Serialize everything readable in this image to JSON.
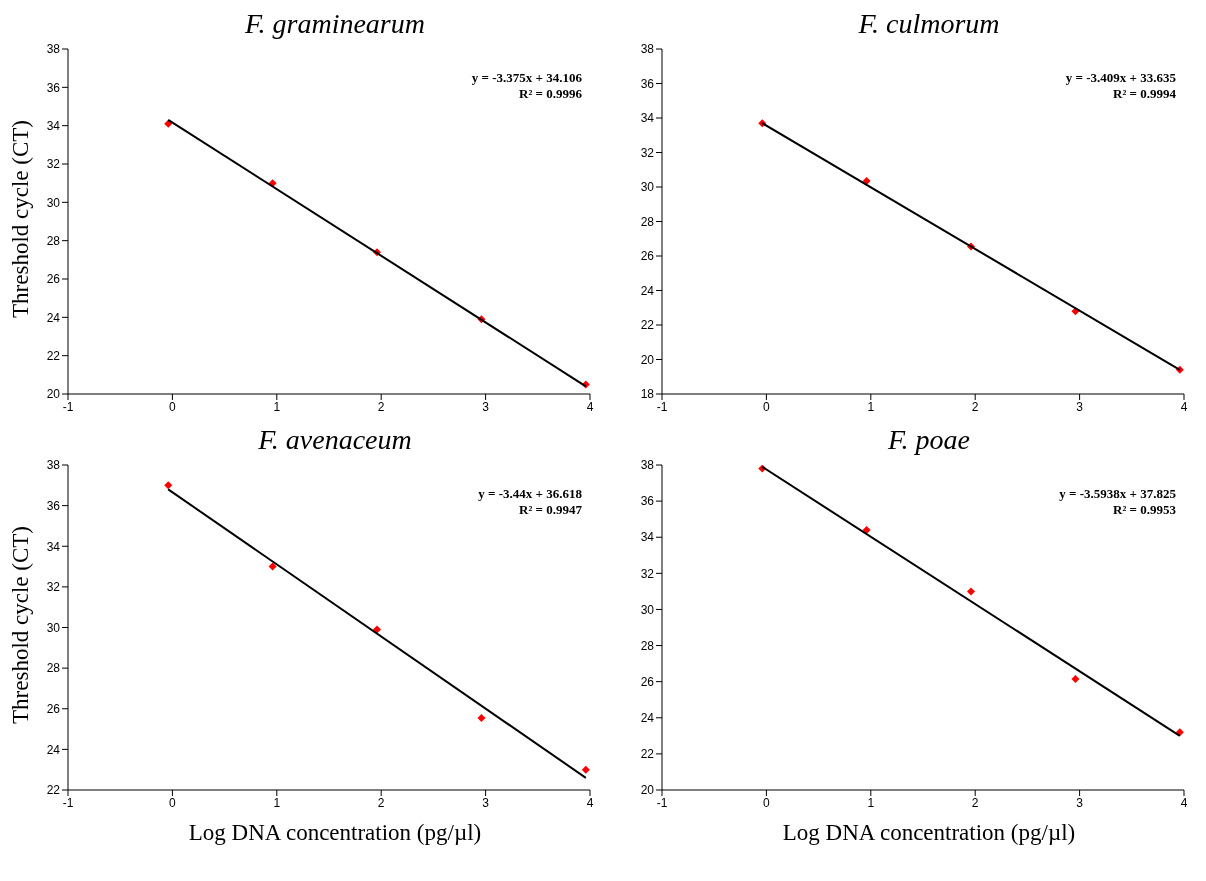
{
  "chart_data": [
    {
      "type": "scatter",
      "title": "F. graminearum",
      "ylabel": "Threshold cycle (CT)",
      "grid": false,
      "xlim": [
        -1,
        4
      ],
      "xticks": [
        -1,
        0,
        1,
        2,
        3,
        4
      ],
      "ylim": [
        20,
        38
      ],
      "yticks": [
        20,
        22,
        24,
        26,
        28,
        30,
        32,
        34,
        36,
        38
      ],
      "annotations": [
        "y = -3.375x + 34.106",
        "R² = 0.9996"
      ],
      "series": [
        {
          "marker": "diamond",
          "color": "#ff0000",
          "x": [
            -0.04,
            0.96,
            1.96,
            2.96,
            3.96
          ],
          "values": [
            34.1,
            31.0,
            27.4,
            23.9,
            20.5
          ]
        },
        {
          "type": "line",
          "marker": "none",
          "color": "#000000",
          "x": [
            -0.04,
            3.96
          ],
          "values": [
            34.3,
            20.4
          ]
        }
      ]
    },
    {
      "type": "scatter",
      "title": "F. culmorum",
      "grid": false,
      "xlim": [
        -1,
        4
      ],
      "xticks": [
        -1,
        0,
        1,
        2,
        3,
        4
      ],
      "ylim": [
        18,
        38
      ],
      "yticks": [
        18,
        20,
        22,
        24,
        26,
        28,
        30,
        32,
        34,
        36,
        38
      ],
      "annotations": [
        "y = -3.409x + 33.635",
        "R² = 0.9994"
      ],
      "series": [
        {
          "marker": "diamond",
          "color": "#ff0000",
          "x": [
            -0.04,
            0.96,
            1.96,
            2.96,
            3.96
          ],
          "values": [
            33.7,
            30.35,
            26.55,
            22.8,
            19.4
          ]
        },
        {
          "type": "line",
          "marker": "none",
          "color": "#000000",
          "x": [
            -0.04,
            3.96
          ],
          "values": [
            33.7,
            19.4
          ]
        }
      ]
    },
    {
      "type": "scatter",
      "title": "F. avenaceum",
      "ylabel": "Threshold cycle (CT)",
      "xlabel": "Log DNA concentration (pg/µl)",
      "grid": false,
      "xlim": [
        -1,
        4
      ],
      "xticks": [
        -1,
        0,
        1,
        2,
        3,
        4
      ],
      "ylim": [
        22,
        38
      ],
      "yticks": [
        22,
        24,
        26,
        28,
        30,
        32,
        34,
        36,
        38
      ],
      "annotations": [
        "y = -3.44x + 36.618",
        "R² = 0.9947"
      ],
      "series": [
        {
          "marker": "diamond",
          "color": "#ff0000",
          "x": [
            -0.04,
            0.96,
            1.96,
            2.96,
            3.96
          ],
          "values": [
            37.0,
            33.0,
            29.9,
            25.55,
            23.0
          ]
        },
        {
          "type": "line",
          "marker": "none",
          "color": "#000000",
          "x": [
            -0.04,
            3.96
          ],
          "values": [
            36.8,
            22.6
          ]
        }
      ]
    },
    {
      "type": "scatter",
      "title": "F. poae",
      "xlabel": "Log DNA concentration (pg/µl)",
      "grid": false,
      "xlim": [
        -1,
        4
      ],
      "xticks": [
        -1,
        0,
        1,
        2,
        3,
        4
      ],
      "ylim": [
        20,
        38
      ],
      "yticks": [
        20,
        22,
        24,
        26,
        28,
        30,
        32,
        34,
        36,
        38
      ],
      "annotations": [
        "y = -3.5938x + 37.825",
        "R² = 0.9953"
      ],
      "series": [
        {
          "marker": "diamond",
          "color": "#ff0000",
          "x": [
            -0.04,
            0.96,
            1.96,
            2.96,
            3.96
          ],
          "values": [
            37.8,
            34.4,
            31.0,
            26.15,
            23.2
          ]
        },
        {
          "type": "line",
          "marker": "none",
          "color": "#000000",
          "x": [
            -0.04,
            3.96
          ],
          "values": [
            37.9,
            23.0
          ]
        }
      ]
    }
  ]
}
